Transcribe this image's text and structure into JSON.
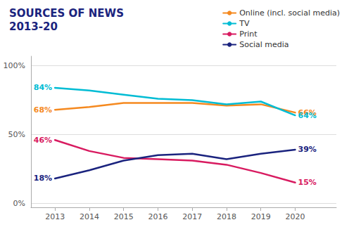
{
  "chart_data": {
    "type": "line",
    "title": "SOURCES OF NEWS",
    "subtitle": "2013-20",
    "x": [
      2013,
      2014,
      2015,
      2016,
      2017,
      2018,
      2019,
      2020
    ],
    "xlim": [
      2012.3,
      2021.2
    ],
    "xticks": [
      2013,
      2014,
      2015,
      2016,
      2017,
      2018,
      2019,
      2020
    ],
    "ylim": [
      -3,
      107
    ],
    "yticks": [
      {
        "value": 0,
        "label": "0%"
      },
      {
        "value": 50,
        "label": "50%"
      },
      {
        "value": 100,
        "label": "100%"
      }
    ],
    "grid": true,
    "legend": "top",
    "series": [
      {
        "name": "Online (incl. social media)",
        "color": "#f5891f",
        "values": [
          68,
          70,
          73,
          73,
          73,
          71,
          72,
          66
        ],
        "value_labels": [
          "68%",
          null,
          null,
          null,
          null,
          null,
          null,
          "66%"
        ]
      },
      {
        "name": "TV",
        "color": "#00bcd4",
        "values": [
          84,
          82,
          79,
          76,
          75,
          72,
          74,
          64
        ],
        "value_labels": [
          "84%",
          null,
          null,
          null,
          null,
          null,
          null,
          "64%"
        ]
      },
      {
        "name": "Print",
        "color": "#d81b60",
        "values": [
          46,
          38,
          33,
          32,
          31,
          28,
          22,
          15
        ],
        "value_labels": [
          "46%",
          null,
          null,
          null,
          null,
          null,
          null,
          "15%"
        ]
      },
      {
        "name": "Social media",
        "color": "#1a237e",
        "values": [
          18,
          24,
          31,
          35,
          36,
          32,
          36,
          39
        ],
        "value_labels": [
          "18%",
          null,
          null,
          null,
          null,
          null,
          null,
          "39%"
        ]
      }
    ]
  }
}
